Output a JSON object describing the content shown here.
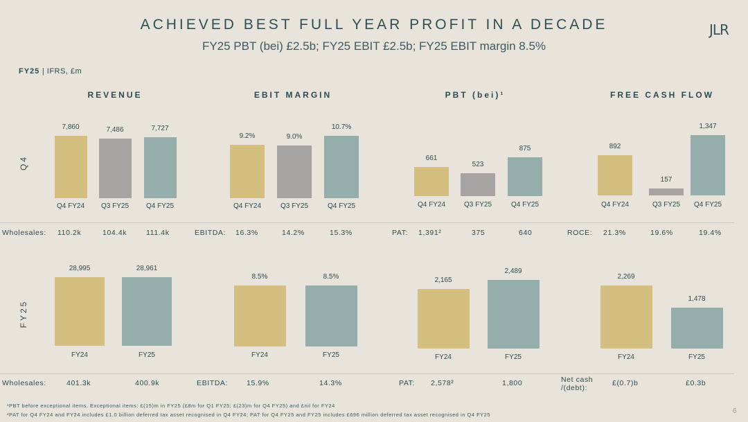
{
  "header": {
    "title": "ACHIEVED BEST FULL YEAR PROFIT IN A DECADE",
    "subtitle": "FY25 PBT (bei) £2.5b; FY25 EBIT £2.5b; FY25 EBIT margin 8.5%",
    "logo": "JLR",
    "units_bold": "FY25",
    "units_rest": " | IFRS, £m"
  },
  "row_labels": {
    "q4": "Q4",
    "fy": "FY25"
  },
  "colors": {
    "prior": "#d5bf80",
    "middle": "#a6a4a2",
    "current": "#95aeac"
  },
  "chart_data": [
    {
      "type": "bar",
      "title": "REVENUE",
      "row": "Q4",
      "categories": [
        "Q4 FY24",
        "Q3 FY25",
        "Q4 FY25"
      ],
      "values": [
        7860,
        7486,
        7727
      ],
      "labels": [
        "7,860",
        "7,486",
        "7,727"
      ]
    },
    {
      "type": "bar",
      "title": "EBIT MARGIN",
      "row": "Q4",
      "categories": [
        "Q4 FY24",
        "Q3 FY25",
        "Q4 FY25"
      ],
      "values": [
        9.2,
        9.0,
        10.7
      ],
      "labels": [
        "9.2%",
        "9.0%",
        "10.7%"
      ]
    },
    {
      "type": "bar",
      "title": "PBT (bei)¹",
      "row": "Q4",
      "categories": [
        "Q4 FY24",
        "Q3 FY25",
        "Q4 FY25"
      ],
      "values": [
        661,
        523,
        875
      ],
      "labels": [
        "661",
        "523",
        "875"
      ]
    },
    {
      "type": "bar",
      "title": "FREE CASH FLOW",
      "row": "Q4",
      "categories": [
        "Q4 FY24",
        "Q3 FY25",
        "Q4 FY25"
      ],
      "values": [
        892,
        157,
        1347
      ],
      "labels": [
        "892",
        "157",
        "1,347"
      ]
    },
    {
      "type": "bar",
      "row": "FY25",
      "categories": [
        "FY24",
        "FY25"
      ],
      "values": [
        28995,
        28961
      ],
      "labels": [
        "28,995",
        "28,961"
      ]
    },
    {
      "type": "bar",
      "row": "FY25",
      "categories": [
        "FY24",
        "FY25"
      ],
      "values": [
        8.5,
        8.5
      ],
      "labels": [
        "8.5%",
        "8.5%"
      ]
    },
    {
      "type": "bar",
      "row": "FY25",
      "categories": [
        "FY24",
        "FY25"
      ],
      "values": [
        2165,
        2489
      ],
      "labels": [
        "2,165",
        "2,489"
      ]
    },
    {
      "type": "bar",
      "row": "FY25",
      "categories": [
        "FY24",
        "FY25"
      ],
      "values": [
        2269,
        1478
      ],
      "labels": [
        "2,269",
        "1,478"
      ]
    }
  ],
  "stats_q4": {
    "wholesales_label": "Wholesales:",
    "wholesales": [
      "110.2k",
      "104.4k",
      "111.4k"
    ],
    "ebitda_label": "EBITDA:",
    "ebitda": [
      "16.3%",
      "14.2%",
      "15.3%"
    ],
    "pat_label": "PAT:",
    "pat": [
      "1,391²",
      "375",
      "640"
    ],
    "roce_label": "ROCE:",
    "roce": [
      "21.3%",
      "19.6%",
      "19.4%"
    ]
  },
  "stats_fy": {
    "wholesales_label": "Wholesales:",
    "wholesales": [
      "401.3k",
      "400.9k"
    ],
    "ebitda_label": "EBITDA:",
    "ebitda": [
      "15.9%",
      "14.3%"
    ],
    "pat_label": "PAT:",
    "pat": [
      "2,578²",
      "1,800"
    ],
    "netcash_label_1": "Net cash",
    "netcash_label_2": "/(debt):",
    "netcash": [
      "£(0.7)b",
      "£0.3b"
    ]
  },
  "footnotes": [
    "¹PBT before exceptional items. Exceptional items: £(15)m in FY25 (£8m for Q1 FY25; £(23)m for Q4 FY25) and £nil for FY24",
    "²PAT for Q4 FY24 and FY24 includes £1.0 billion deferred tax asset recognised in Q4 FY24; PAT for Q4 FY25 and FY25 includes £696 million deferred tax asset recognised in Q4 FY25"
  ],
  "page_number": "6"
}
